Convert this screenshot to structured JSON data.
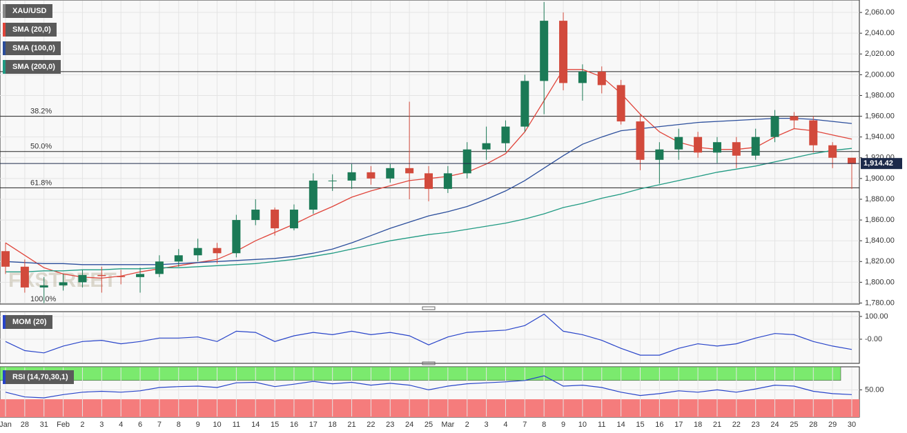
{
  "chart_data": [
    {
      "type": "candlestick",
      "title": "XAU/USD",
      "title_color": "#5a5a5a",
      "categories": [
        "Jan",
        "28",
        "31",
        "Feb",
        "2",
        "3",
        "4",
        "6",
        "7",
        "8",
        "9",
        "10",
        "11",
        "14",
        "15",
        "16",
        "17",
        "18",
        "21",
        "22",
        "23",
        "24",
        "25",
        "Mar",
        "2",
        "3",
        "4",
        "7",
        "8",
        "9",
        "10",
        "11",
        "14",
        "15",
        "16",
        "17",
        "18",
        "21",
        "22",
        "23",
        "24",
        "25",
        "28",
        "29",
        "30"
      ],
      "open": [
        1830,
        1815,
        1795,
        1797,
        1800,
        1807,
        1806,
        1805,
        1808,
        1820,
        1826,
        1833,
        1828,
        1860,
        1870,
        1852,
        1870,
        1898,
        1898,
        1906,
        1900,
        1910,
        1905,
        1890,
        1905,
        1928,
        1934,
        1950,
        1994,
        2052,
        1992,
        2003,
        1990,
        1955,
        1918,
        1928,
        1940,
        1925,
        1935,
        1922,
        1940,
        1960,
        1956,
        1932,
        1920
      ],
      "high": [
        1838,
        1822,
        1805,
        1808,
        1812,
        1815,
        1812,
        1814,
        1826,
        1832,
        1842,
        1838,
        1865,
        1880,
        1872,
        1875,
        1905,
        1904,
        1914,
        1912,
        1914,
        1974,
        1912,
        1912,
        1935,
        1950,
        1956,
        2000,
        2070,
        2060,
        2010,
        2008,
        1995,
        1962,
        1935,
        1948,
        1945,
        1940,
        1940,
        1948,
        1966,
        1964,
        1960,
        1935,
        1920
      ],
      "low": [
        1808,
        1790,
        1780,
        1792,
        1795,
        1790,
        1798,
        1790,
        1805,
        1815,
        1820,
        1818,
        1824,
        1855,
        1845,
        1850,
        1866,
        1888,
        1890,
        1894,
        1896,
        1880,
        1878,
        1886,
        1900,
        1918,
        1926,
        1945,
        1962,
        1985,
        1975,
        1982,
        1952,
        1908,
        1895,
        1918,
        1920,
        1915,
        1910,
        1918,
        1935,
        1948,
        1925,
        1910,
        1890
      ],
      "close": [
        1815,
        1795,
        1797,
        1800,
        1807,
        1806,
        1805,
        1808,
        1820,
        1826,
        1833,
        1828,
        1860,
        1870,
        1852,
        1870,
        1898,
        1898,
        1906,
        1900,
        1910,
        1905,
        1890,
        1905,
        1928,
        1934,
        1950,
        1994,
        2052,
        1992,
        2003,
        1990,
        1955,
        1918,
        1928,
        1940,
        1925,
        1935,
        1922,
        1940,
        1960,
        1956,
        1932,
        1920,
        1914
      ],
      "up_color": "#1b7a56",
      "down_color": "#d24a3c",
      "overlays": [
        {
          "name": "SMA (20,0)",
          "color": "#e0443a",
          "values": [
            1838,
            1826,
            1814,
            1808,
            1805,
            1804,
            1806,
            1810,
            1813,
            1816,
            1819,
            1822,
            1830,
            1840,
            1848,
            1856,
            1865,
            1873,
            1882,
            1888,
            1893,
            1898,
            1900,
            1902,
            1906,
            1914,
            1924,
            1945,
            1975,
            2005,
            2005,
            1998,
            1982,
            1962,
            1945,
            1935,
            1930,
            1928,
            1928,
            1930,
            1940,
            1948,
            1946,
            1942,
            1938
          ]
        },
        {
          "name": "SMA (100,0)",
          "color": "#2a4d9b",
          "values": [
            1820,
            1819,
            1818,
            1818,
            1817,
            1817,
            1817,
            1817,
            1817,
            1818,
            1819,
            1820,
            1821,
            1822,
            1823,
            1825,
            1828,
            1832,
            1838,
            1845,
            1852,
            1858,
            1864,
            1868,
            1873,
            1880,
            1888,
            1898,
            1910,
            1922,
            1933,
            1940,
            1946,
            1948,
            1950,
            1952,
            1954,
            1955,
            1956,
            1957,
            1958,
            1958,
            1957,
            1955,
            1953
          ]
        },
        {
          "name": "SMA (200,0)",
          "color": "#1f9a82",
          "values": [
            1810,
            1810,
            1811,
            1811,
            1812,
            1812,
            1813,
            1813,
            1814,
            1814,
            1815,
            1816,
            1817,
            1818,
            1820,
            1822,
            1825,
            1828,
            1832,
            1836,
            1840,
            1843,
            1846,
            1848,
            1851,
            1854,
            1857,
            1861,
            1866,
            1872,
            1876,
            1881,
            1885,
            1890,
            1894,
            1898,
            1902,
            1906,
            1909,
            1912,
            1916,
            1920,
            1924,
            1927,
            1929
          ]
        }
      ],
      "levels": [
        {
          "value": 1960,
          "label": "38.2%"
        },
        {
          "value": 1926,
          "label": "50.0%"
        },
        {
          "value": 1891,
          "label": "61.8%"
        },
        {
          "value": 1779,
          "label": "100.0%"
        }
      ],
      "hlines": [
        2003
      ],
      "last_price": {
        "value": 1914.42,
        "label": "1,914.42"
      },
      "watermark": "FXSTREET",
      "ylim": [
        1779,
        2072
      ],
      "yticks": [
        {
          "value": 1780,
          "label": "1,780.00"
        },
        {
          "value": 1800,
          "label": "1,800.00"
        },
        {
          "value": 1820,
          "label": "1,820.00"
        },
        {
          "value": 1840,
          "label": "1,840.00"
        },
        {
          "value": 1860,
          "label": "1,860.00"
        },
        {
          "value": 1880,
          "label": "1,880.00"
        },
        {
          "value": 1900,
          "label": "1,900.00"
        },
        {
          "value": 1920,
          "label": "1,920.00"
        },
        {
          "value": 1940,
          "label": "1,940.00"
        },
        {
          "value": 1960,
          "label": "1,960.00"
        },
        {
          "value": 1980,
          "label": "1,980.00"
        },
        {
          "value": 2000,
          "label": "2,000.00"
        },
        {
          "value": 2020,
          "label": "2,020.00"
        },
        {
          "value": 2040,
          "label": "2,040.00"
        },
        {
          "value": 2060,
          "label": "2,060.00"
        }
      ]
    },
    {
      "type": "line",
      "title": "MOM (20)",
      "color": "#2743c9",
      "values": [
        -10,
        -50,
        -60,
        -30,
        -10,
        -5,
        -20,
        -10,
        5,
        5,
        10,
        -10,
        35,
        30,
        -10,
        15,
        30,
        20,
        35,
        20,
        30,
        15,
        -25,
        10,
        30,
        35,
        40,
        60,
        110,
        35,
        20,
        -5,
        -40,
        -70,
        -70,
        -40,
        -20,
        -30,
        -20,
        5,
        25,
        20,
        -10,
        -30,
        -45
      ],
      "ylim": [
        -106,
        121
      ],
      "yticks": [
        {
          "value": 0,
          "label": "-0.00"
        },
        {
          "value": 100,
          "label": "100.00"
        }
      ]
    },
    {
      "type": "line",
      "title": "RSI (14,70,30,1)",
      "color": "#2743c9",
      "values": [
        45,
        35,
        33,
        40,
        45,
        47,
        45,
        48,
        55,
        57,
        58,
        55,
        65,
        66,
        57,
        62,
        68,
        63,
        66,
        60,
        64,
        60,
        50,
        58,
        63,
        65,
        67,
        70,
        80,
        58,
        60,
        55,
        45,
        38,
        42,
        48,
        45,
        50,
        45,
        52,
        60,
        58,
        47,
        42,
        40
      ],
      "overbought": 70,
      "oversold": 30,
      "overbought_color": "#7bea6e",
      "oversold_color": "#f57c7c",
      "ylim": [
        -8,
        99
      ],
      "yticks": [
        {
          "value": 50,
          "label": "50.00"
        }
      ]
    }
  ]
}
